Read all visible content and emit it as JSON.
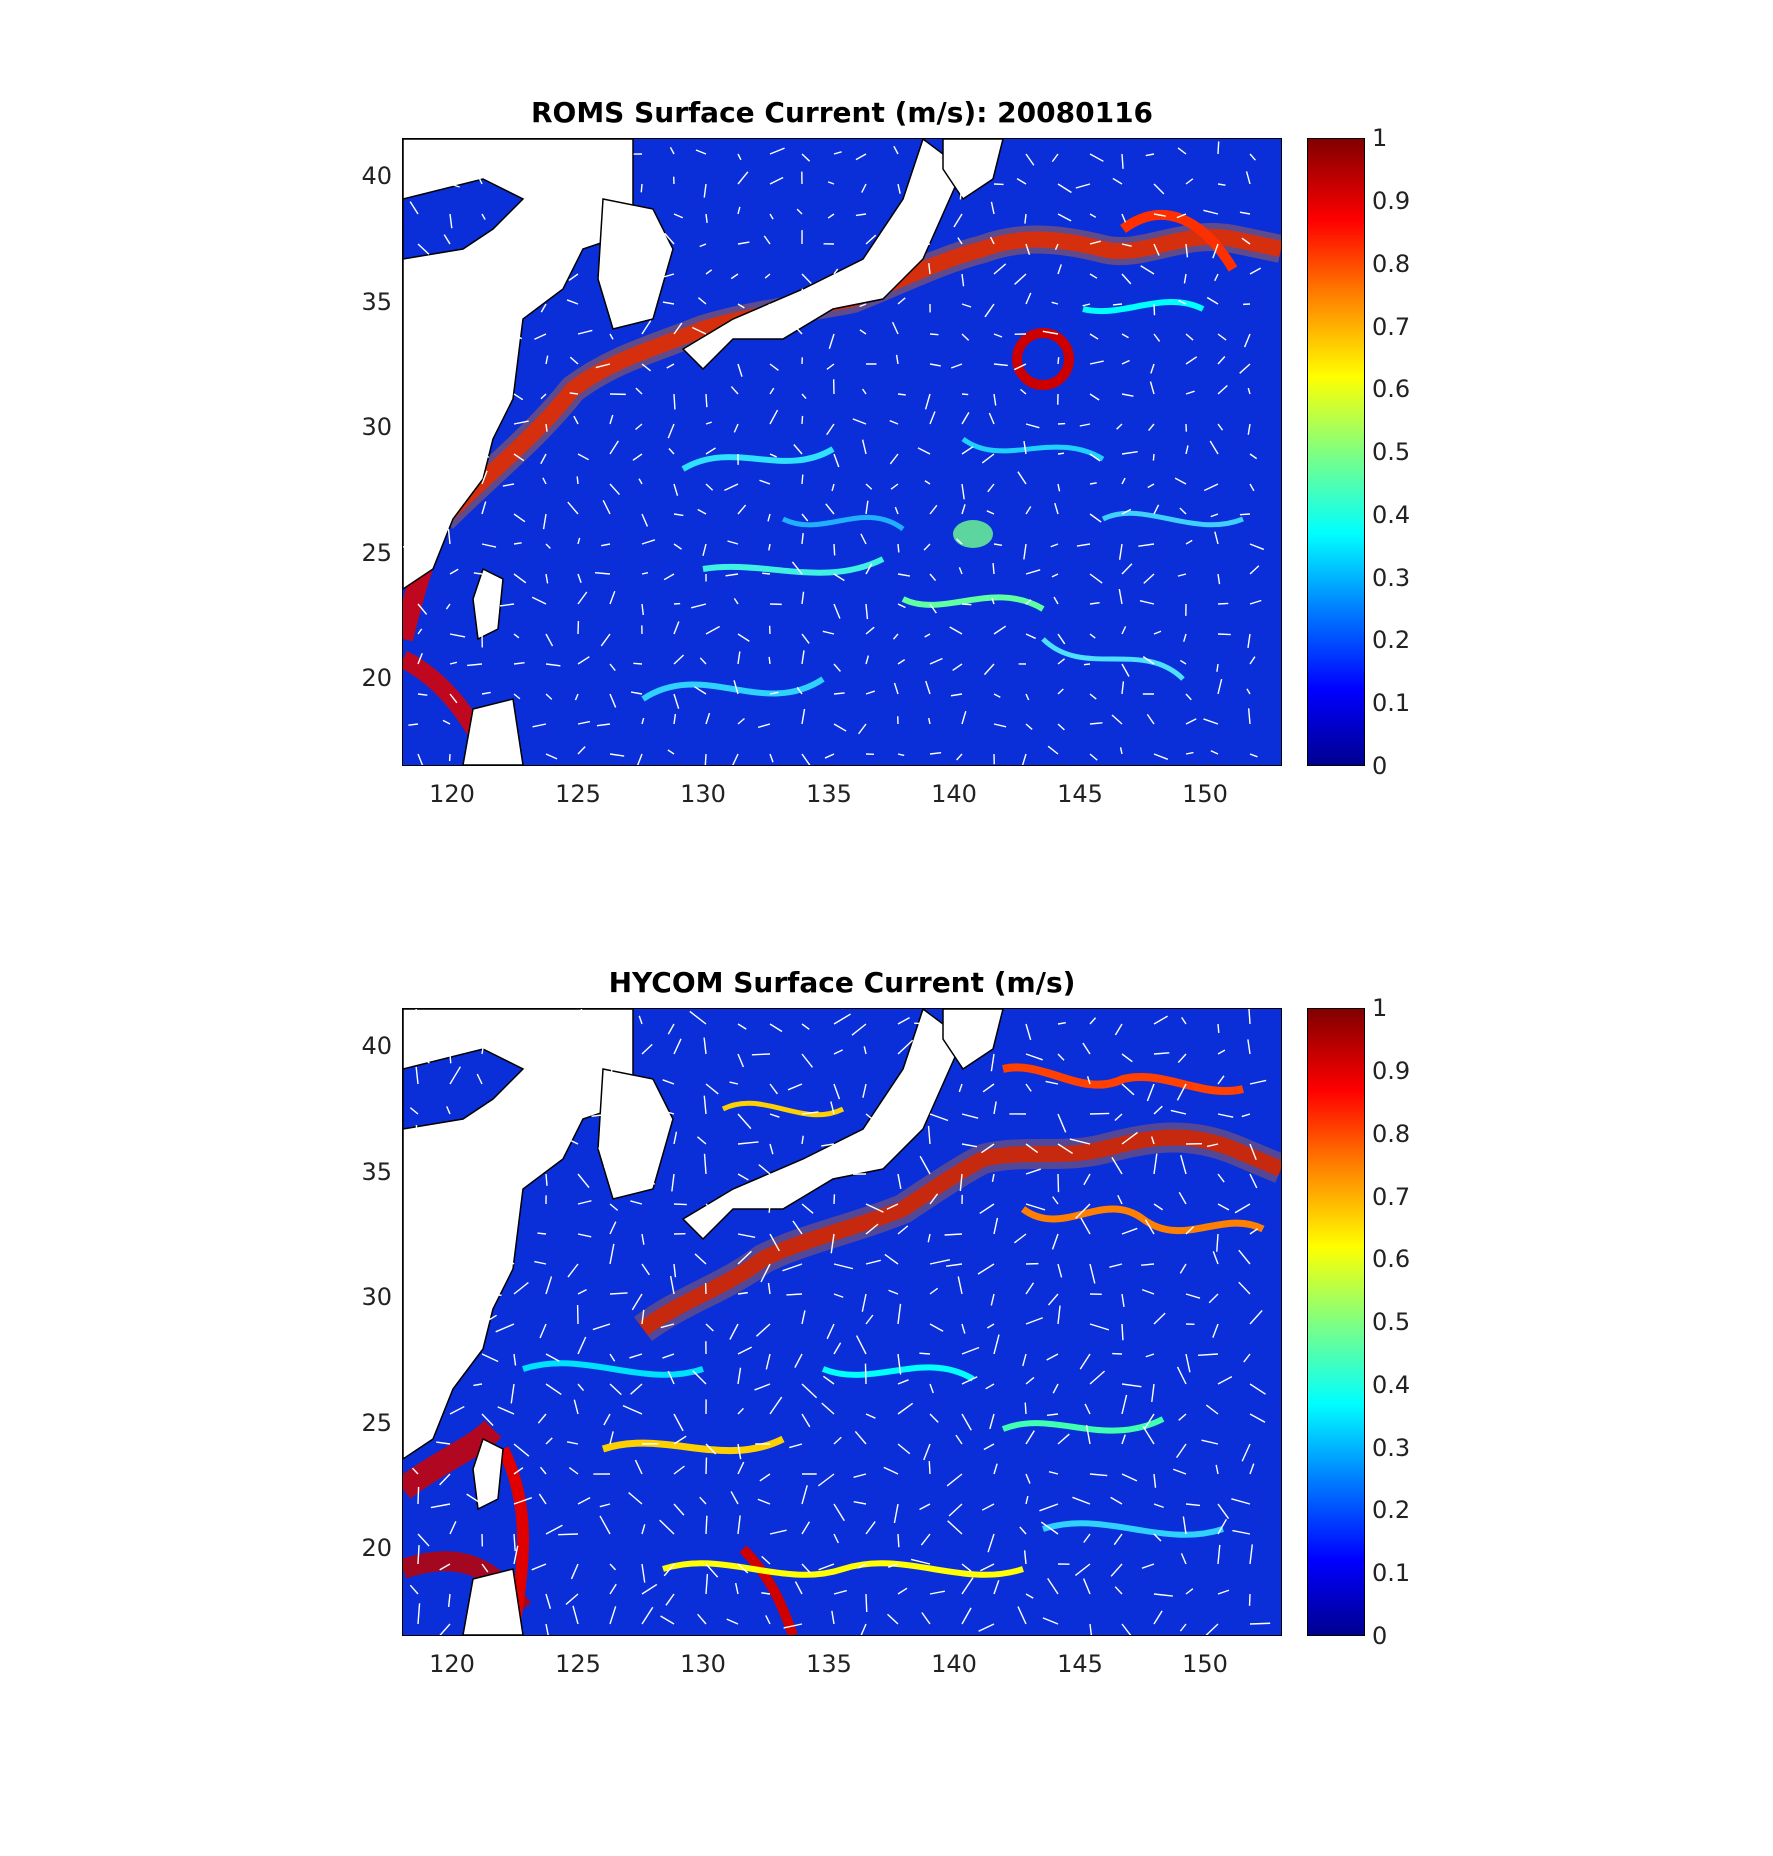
{
  "panels": [
    {
      "title": "ROMS Surface Current (m/s): 20080116"
    },
    {
      "title": "HYCOM Surface Current (m/s)"
    }
  ],
  "map": {
    "lon_ticks": [
      "120",
      "125",
      "130",
      "135",
      "140",
      "145",
      "150"
    ],
    "lat_ticks": [
      "40",
      "35",
      "30",
      "25",
      "20"
    ],
    "lon_range": [
      118,
      153
    ],
    "lat_range": [
      17,
      42
    ]
  },
  "colorbar": {
    "ticks": [
      "1",
      "0.9",
      "0.8",
      "0.7",
      "0.6",
      "0.5",
      "0.4",
      "0.3",
      "0.2",
      "0.1",
      "0"
    ],
    "range": [
      0,
      1
    ],
    "colormap": [
      "#00008f",
      "#0000ff",
      "#0080ff",
      "#00ffff",
      "#80ff80",
      "#ffff00",
      "#ff8000",
      "#ff0000",
      "#800000"
    ]
  },
  "colors": {
    "land": "#ffffff",
    "arrows": "#ffffff",
    "ocean_base": "#0a2fd8"
  }
}
